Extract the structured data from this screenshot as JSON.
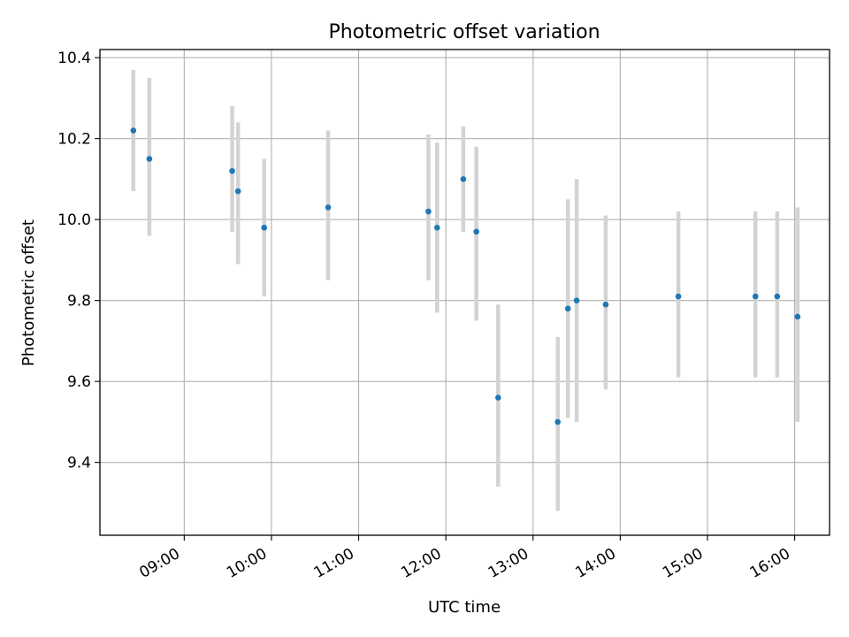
{
  "chart_data": {
    "type": "scatter",
    "title": "Photometric offset variation",
    "xlabel": "UTC time",
    "ylabel": "Photometric offset",
    "grid": true,
    "x_ticks": [
      "09:00",
      "10:00",
      "11:00",
      "12:00",
      "13:00",
      "14:00",
      "15:00",
      "16:00"
    ],
    "y_ticks": [
      "9.4",
      "9.6",
      "9.8",
      "10.0",
      "10.2",
      "10.4"
    ],
    "xlim": [
      "08:02",
      "16:24"
    ],
    "ylim": [
      9.22,
      10.42
    ],
    "colors": {
      "points": "#1f77b4",
      "error_bars": "#d3d3d3",
      "grid": "#b0b0b0"
    },
    "points": [
      {
        "x": "08:25",
        "y": 10.22,
        "err_low": 10.07,
        "err_high": 10.37
      },
      {
        "x": "08:36",
        "y": 10.15,
        "err_low": 9.96,
        "err_high": 10.35
      },
      {
        "x": "09:33",
        "y": 10.12,
        "err_low": 9.97,
        "err_high": 10.28
      },
      {
        "x": "09:37",
        "y": 10.07,
        "err_low": 9.89,
        "err_high": 10.24
      },
      {
        "x": "09:55",
        "y": 9.98,
        "err_low": 9.81,
        "err_high": 10.15
      },
      {
        "x": "10:39",
        "y": 10.03,
        "err_low": 9.85,
        "err_high": 10.22
      },
      {
        "x": "11:48",
        "y": 10.02,
        "err_low": 9.85,
        "err_high": 10.21
      },
      {
        "x": "11:54",
        "y": 9.98,
        "err_low": 9.77,
        "err_high": 10.19
      },
      {
        "x": "12:12",
        "y": 10.1,
        "err_low": 9.97,
        "err_high": 10.23
      },
      {
        "x": "12:21",
        "y": 9.97,
        "err_low": 9.75,
        "err_high": 10.18
      },
      {
        "x": "12:36",
        "y": 9.56,
        "err_low": 9.34,
        "err_high": 9.79
      },
      {
        "x": "13:17",
        "y": 9.5,
        "err_low": 9.28,
        "err_high": 9.71
      },
      {
        "x": "13:24",
        "y": 9.78,
        "err_low": 9.51,
        "err_high": 10.05
      },
      {
        "x": "13:30",
        "y": 9.8,
        "err_low": 9.5,
        "err_high": 10.1
      },
      {
        "x": "13:50",
        "y": 9.79,
        "err_low": 9.58,
        "err_high": 10.01
      },
      {
        "x": "14:40",
        "y": 9.81,
        "err_low": 9.61,
        "err_high": 10.02
      },
      {
        "x": "15:33",
        "y": 9.81,
        "err_low": 9.61,
        "err_high": 10.02
      },
      {
        "x": "15:48",
        "y": 9.81,
        "err_low": 9.61,
        "err_high": 10.02
      },
      {
        "x": "16:02",
        "y": 9.76,
        "err_low": 9.5,
        "err_high": 10.03
      }
    ]
  }
}
